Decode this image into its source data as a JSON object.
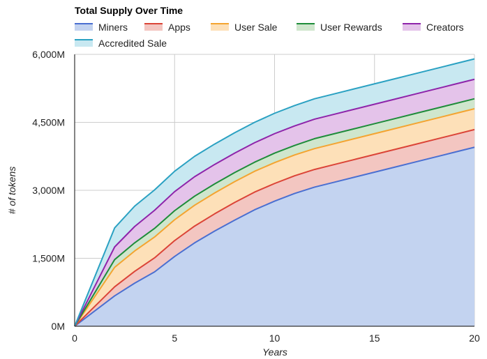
{
  "chart_data": {
    "type": "area",
    "stacked": true,
    "title": "Total Supply Over Time",
    "xlabel": "Years",
    "ylabel": "# of tokens",
    "xlim": [
      0,
      20
    ],
    "ylim": [
      0,
      6000
    ],
    "x_ticks": [
      0,
      5,
      10,
      15,
      20
    ],
    "y_ticks": [
      0,
      1500,
      3000,
      4500,
      6000
    ],
    "y_tick_labels": [
      "0M",
      "1,500M",
      "3,000M",
      "4,500M",
      "6,000M"
    ],
    "x_tick_labels": [
      "0",
      "5",
      "10",
      "15",
      "20"
    ],
    "grid": true,
    "legend_position": "top",
    "units": "millions of tokens",
    "x": [
      0,
      2,
      3,
      4,
      5,
      6,
      7,
      8,
      9,
      10,
      11,
      12,
      13,
      14,
      15,
      16,
      17,
      18,
      19,
      20
    ],
    "series": [
      {
        "name": "Miners",
        "line_color": "#4a6fd1",
        "fill_color": "#c3d3f0",
        "values": [
          0,
          670,
          950,
          1200,
          1540,
          1840,
          2100,
          2340,
          2570,
          2760,
          2930,
          3070,
          3180,
          3290,
          3400,
          3510,
          3620,
          3730,
          3840,
          3950
        ]
      },
      {
        "name": "Apps",
        "line_color": "#db4437",
        "fill_color": "#f3c6c1",
        "values": [
          0,
          200,
          260,
          310,
          350,
          370,
          380,
          390,
          390,
          390,
          390,
          390,
          390,
          390,
          390,
          390,
          390,
          390,
          390,
          390
        ]
      },
      {
        "name": "User Sale",
        "line_color": "#f4a430",
        "fill_color": "#fde0b8",
        "values": [
          0,
          430,
          450,
          460,
          460,
          460,
          460,
          460,
          460,
          460,
          460,
          460,
          460,
          460,
          460,
          460,
          460,
          460,
          460,
          460
        ]
      },
      {
        "name": "User Rewards",
        "line_color": "#1e8c3a",
        "fill_color": "#cfe6cd",
        "values": [
          0,
          170,
          180,
          190,
          200,
          200,
          200,
          200,
          200,
          210,
          210,
          220,
          220,
          220,
          220,
          220,
          220,
          220,
          220,
          220
        ]
      },
      {
        "name": "Creators",
        "line_color": "#8e24aa",
        "fill_color": "#e4c3ea",
        "values": [
          0,
          280,
          360,
          400,
          420,
          430,
          430,
          430,
          430,
          430,
          430,
          430,
          430,
          430,
          430,
          430,
          430,
          430,
          430,
          430
        ]
      },
      {
        "name": "Accredited Sale",
        "line_color": "#2aa1c2",
        "fill_color": "#c8e8f1",
        "values": [
          0,
          420,
          450,
          450,
          450,
          450,
          450,
          450,
          450,
          450,
          450,
          450,
          450,
          450,
          450,
          450,
          450,
          450,
          450,
          450
        ]
      }
    ]
  }
}
